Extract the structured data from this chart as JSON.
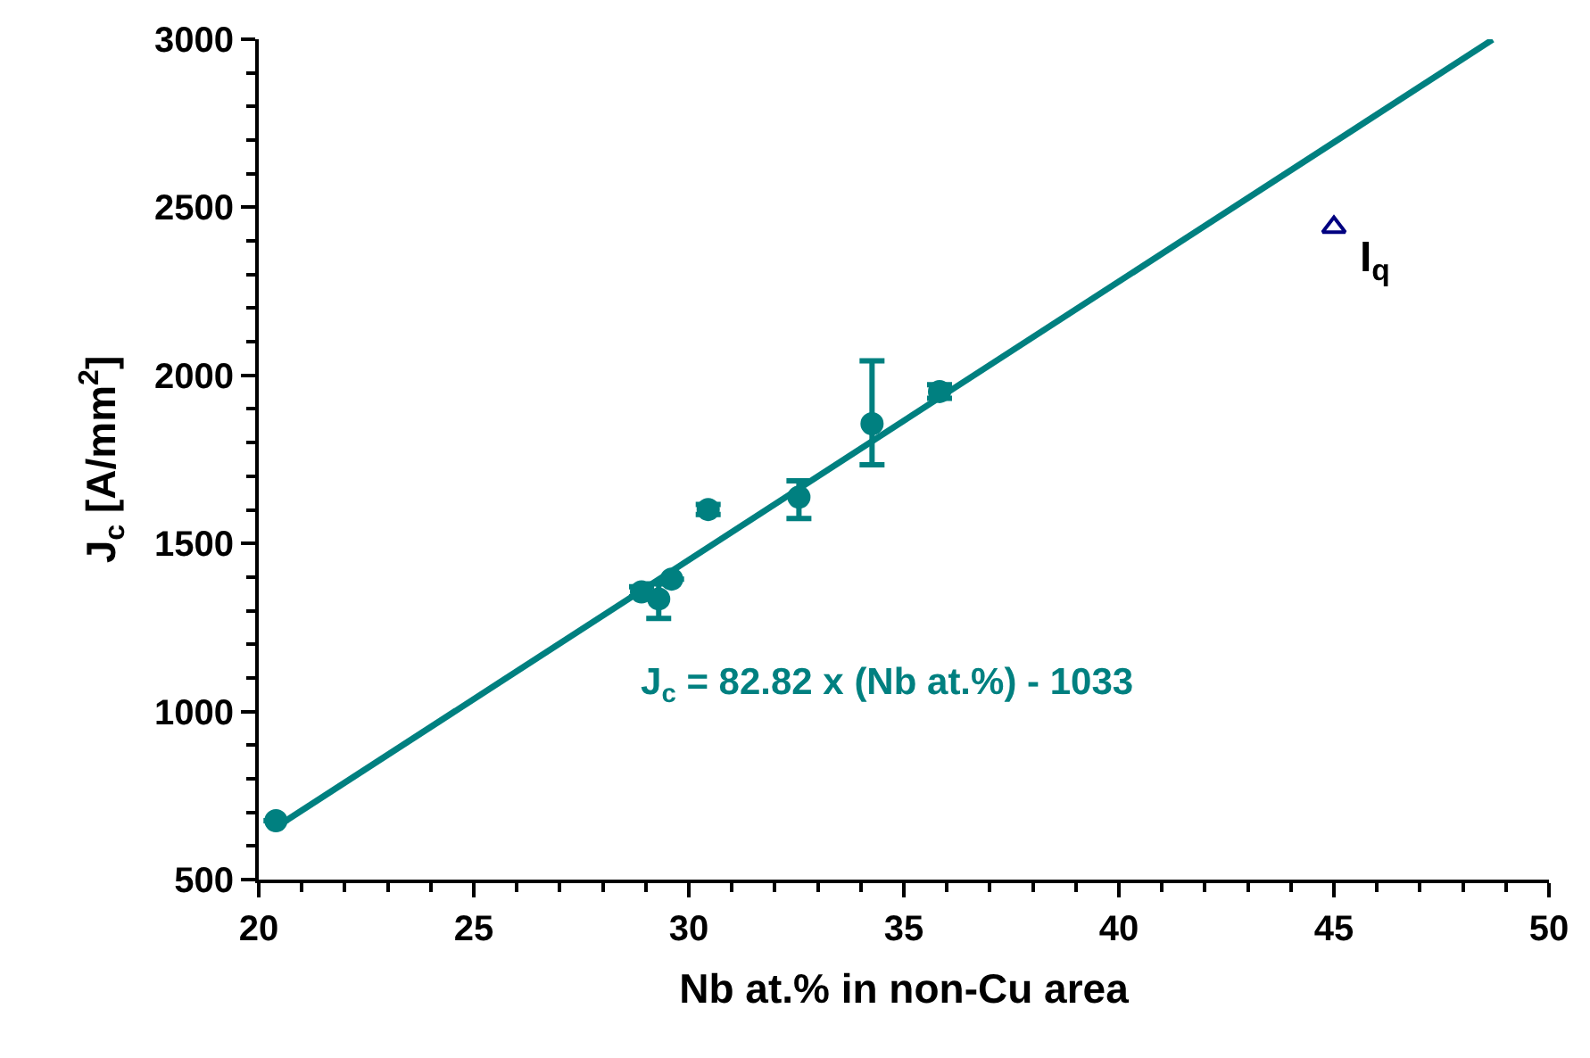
{
  "chart_data": {
    "type": "scatter",
    "xlabel": "Nb at.% in non-Cu area",
    "ylabel": "J$_{c}$ [A/mm$^{2}$]",
    "xlim": [
      20,
      50
    ],
    "xticks": [
      20,
      25,
      30,
      35,
      40,
      45,
      50
    ],
    "ylim": [
      500,
      3000
    ],
    "yticks": [
      500,
      1000,
      1500,
      2000,
      2500,
      3000
    ],
    "series": [
      {
        "marker": "circle",
        "color": "#008080",
        "x": [
          20.4,
          28.9,
          29.3,
          29.6,
          30.45,
          32.56,
          34.26,
          35.83
        ],
        "values": [
          675,
          1356,
          1335,
          1394,
          1601,
          1638,
          1856,
          1952
        ],
        "errors": [
          null,
          15,
          [
            1277,
            1380
          ],
          null,
          15,
          [
            1574,
            1686
          ],
          [
            1734,
            2043
          ],
          20
        ]
      },
      {
        "type": "scatter",
        "marker": "triangle",
        "color": "#000080",
        "x": [
          45.0
        ],
        "values": [
          2441
        ]
      },
      {
        "type": "line",
        "marker": "none",
        "color": "#008080",
        "x": [
          20.4,
          48.69
        ],
        "values": [
          656,
          2999
        ]
      }
    ],
    "annotations": [
      "J$_{c}$ = 82.82 x (Nb at.%) - 1033",
      {
        "text": "I$_{q}$",
        "x": 45.0,
        "y": 2441
      }
    ]
  }
}
